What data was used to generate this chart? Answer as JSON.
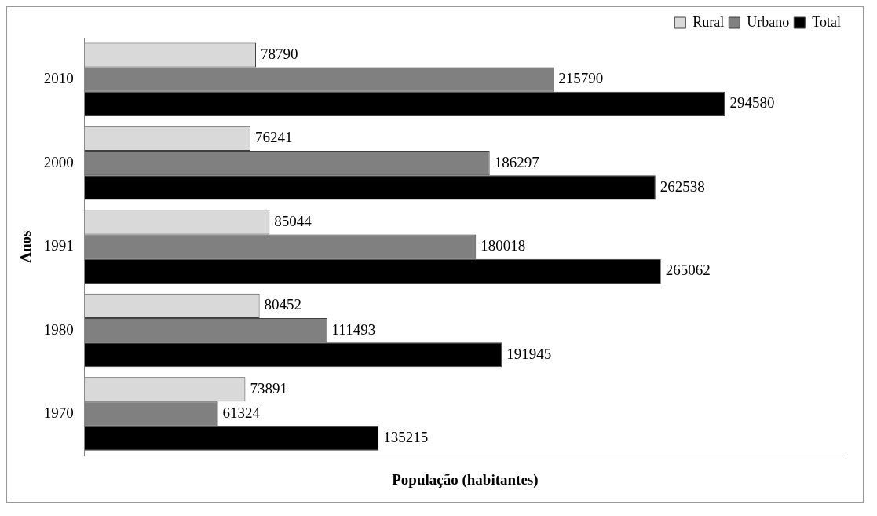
{
  "chart_data": {
    "type": "bar",
    "orientation": "horizontal",
    "xlabel": "População (habitantes)",
    "ylabel": "Anos",
    "categories": [
      "2010",
      "2000",
      "1991",
      "1980",
      "1970"
    ],
    "series": [
      {
        "name": "Rural",
        "color": "#d9d9d9",
        "values": [
          78790,
          76241,
          85044,
          80452,
          73891
        ]
      },
      {
        "name": "Urbano",
        "color": "#808080",
        "values": [
          215790,
          186297,
          180018,
          111493,
          61324
        ]
      },
      {
        "name": "Total",
        "color": "#000000",
        "values": [
          294580,
          262538,
          265062,
          191945,
          135215
        ]
      }
    ],
    "xlim": [
      0,
      350000
    ],
    "data_labels": true,
    "legend": "top right",
    "tick_labels": "y",
    "grid": false
  }
}
